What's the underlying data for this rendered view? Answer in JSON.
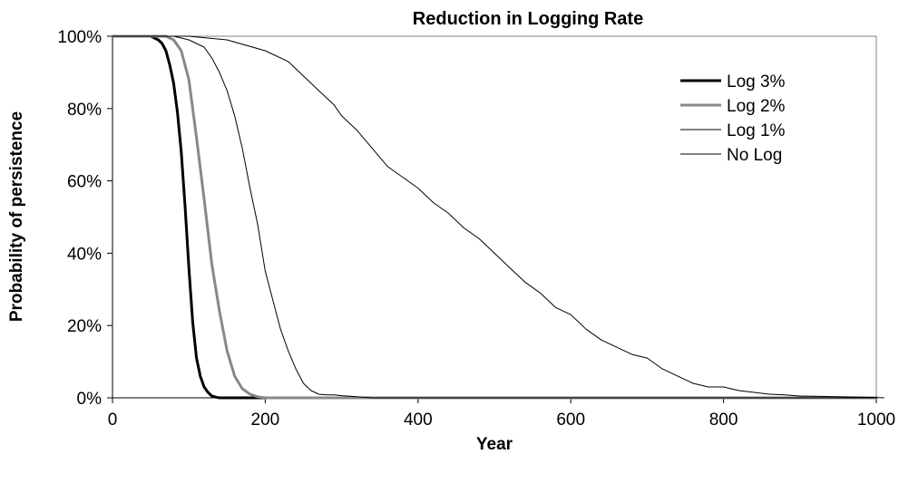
{
  "chart_data": {
    "type": "line",
    "title": "Reduction in Logging Rate",
    "xlabel": "Year",
    "ylabel": "Probability of persistence",
    "xlim": [
      0,
      1000
    ],
    "ylim": [
      0,
      100
    ],
    "x_ticks": [
      "0",
      "200",
      "400",
      "600",
      "800",
      "1000"
    ],
    "y_ticks": [
      "0%",
      "20%",
      "40%",
      "60%",
      "80%",
      "100%"
    ],
    "grid": false,
    "legend_position": "top-right",
    "series": [
      {
        "name": "Log 3%",
        "color": "#000000",
        "width": 3,
        "x": [
          0,
          50,
          60,
          65,
          70,
          75,
          80,
          85,
          90,
          95,
          100,
          105,
          110,
          115,
          120,
          125,
          130,
          135,
          140,
          150,
          200,
          1000
        ],
        "y": [
          100,
          100,
          99,
          98,
          96,
          92,
          87,
          79,
          68,
          53,
          36,
          21,
          11,
          6,
          3,
          1.5,
          0.5,
          0.2,
          0,
          0,
          0,
          0
        ]
      },
      {
        "name": "Log 2%",
        "color": "#888888",
        "width": 3,
        "x": [
          0,
          60,
          70,
          80,
          90,
          100,
          110,
          120,
          130,
          140,
          150,
          160,
          170,
          180,
          190,
          200,
          210,
          1000
        ],
        "y": [
          100,
          100,
          100,
          99,
          96,
          88,
          72,
          55,
          37,
          24,
          13,
          6,
          2.5,
          1,
          0.3,
          0,
          0,
          0
        ]
      },
      {
        "name": "Log 1%",
        "color": "#000000",
        "width": 1,
        "x": [
          0,
          80,
          100,
          120,
          130,
          140,
          150,
          160,
          170,
          180,
          190,
          200,
          210,
          220,
          230,
          240,
          250,
          260,
          270,
          280,
          290,
          300,
          320,
          340,
          1000
        ],
        "y": [
          100,
          100,
          99,
          97,
          94,
          90,
          85,
          78,
          69,
          58,
          48,
          35,
          27,
          19,
          13,
          8,
          4,
          2,
          1,
          0.8,
          0.8,
          0.6,
          0.3,
          0,
          0
        ]
      },
      {
        "name": "No Log",
        "color": "#000000",
        "width": 1,
        "x": [
          0,
          100,
          150,
          200,
          230,
          250,
          270,
          290,
          300,
          320,
          340,
          360,
          380,
          400,
          420,
          440,
          460,
          480,
          500,
          520,
          540,
          560,
          580,
          600,
          620,
          640,
          660,
          680,
          700,
          720,
          740,
          760,
          780,
          800,
          820,
          840,
          860,
          880,
          900,
          950,
          1000,
          1010
        ],
        "y": [
          100,
          100,
          99,
          96,
          93,
          89,
          85,
          81,
          78,
          74,
          69,
          64,
          61,
          58,
          54,
          51,
          47,
          44,
          40,
          36,
          32,
          29,
          25,
          23,
          19,
          16,
          14,
          12,
          11,
          8,
          6,
          4,
          3,
          3,
          2,
          1.5,
          1,
          0.8,
          0.5,
          0.3,
          0.1,
          0
        ]
      }
    ]
  }
}
